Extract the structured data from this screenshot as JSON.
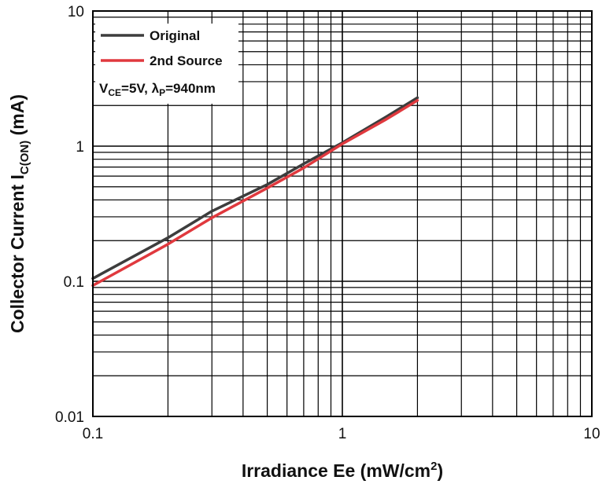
{
  "chart_data": {
    "type": "line",
    "scale": {
      "x": "log",
      "y": "log"
    },
    "xlim": [
      0.1,
      10
    ],
    "ylim": [
      0.01,
      10
    ],
    "x_ticks": [
      "0.1",
      "1",
      "10"
    ],
    "y_ticks": [
      "0.01",
      "0.1",
      "1",
      "10"
    ],
    "xlabel": {
      "main": "Irradiance Ee (mW/cm",
      "sup": "2",
      "end": ")"
    },
    "ylabel": {
      "main": "Collector Current I",
      "sub": "C(ON)",
      "end": " (mA)"
    },
    "grid": true,
    "legend_position": "top-left",
    "series": [
      {
        "name": "Original",
        "color": "#3d3d3d",
        "x": [
          0.1,
          0.2,
          0.3,
          0.5,
          0.7,
          1.0,
          1.5,
          2.0
        ],
        "y": [
          0.105,
          0.21,
          0.33,
          0.52,
          0.74,
          1.06,
          1.65,
          2.28
        ]
      },
      {
        "name": "2nd Source",
        "color": "#e0393e",
        "x": [
          0.1,
          0.2,
          0.3,
          0.5,
          0.7,
          1.0,
          1.5,
          2.0
        ],
        "y": [
          0.093,
          0.188,
          0.295,
          0.49,
          0.69,
          1.04,
          1.58,
          2.18
        ]
      }
    ],
    "annotation": {
      "v_main": "V",
      "v_sub": "CE",
      "v_end": "=5V, ",
      "lambda_main": "λ",
      "lambda_sub": "P",
      "lambda_end": "=940nm"
    }
  }
}
